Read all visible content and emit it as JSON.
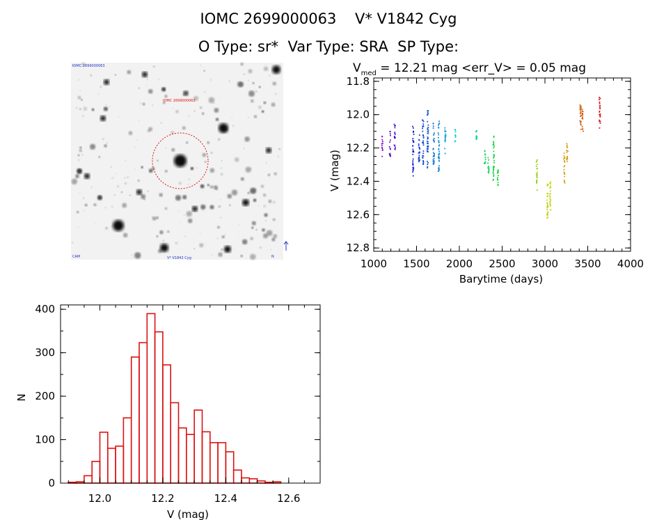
{
  "header": {
    "line1": "IOMC 2699000063    V* V1842 Cyg",
    "line2": "O Type: sr*  Var Type: SRA  SP Type:"
  },
  "colors": {
    "hist": "#dd1111",
    "circle": "#dd1111",
    "axis": "#000000"
  },
  "image_panel": {
    "label_top_left": "IOMC 2699000063",
    "label_red": "IOMC 2699000063",
    "label_bottom_left": "CAM",
    "label_bottom_center": "V* V1842 Cyg",
    "label_bottom_right": "N",
    "arrow_icon": "north-arrow-icon"
  },
  "chart_data": [
    {
      "type": "scatter",
      "title_prefix": "V",
      "title_sub": "med",
      "title_suffix": " = 12.21 mag <err_V> = 0.05 mag",
      "xlabel": "Barytime (days)",
      "ylabel": "V (mag)",
      "xlim": [
        1000,
        4000
      ],
      "ylim": [
        12.82,
        11.78
      ],
      "y_inverted": true,
      "xticks": [
        "1000",
        "1500",
        "2000",
        "2500",
        "3000",
        "3500",
        "4000"
      ],
      "yticks": [
        "11.8",
        "12.0",
        "12.2",
        "12.4",
        "12.6",
        "12.8"
      ],
      "color_by": "time",
      "segments": [
        {
          "x": 1100,
          "y": [
            12.13,
            12.27
          ]
        },
        {
          "x": 1190,
          "y": [
            12.1,
            12.25
          ]
        },
        {
          "x": 1245,
          "y": [
            12.05,
            12.21
          ]
        },
        {
          "x": 1460,
          "y": [
            12.07,
            12.37
          ]
        },
        {
          "x": 1530,
          "y": [
            12.12,
            12.3
          ]
        },
        {
          "x": 1575,
          "y": [
            12.03,
            12.3
          ]
        },
        {
          "x": 1630,
          "y": [
            11.95,
            12.34
          ]
        },
        {
          "x": 1700,
          "y": [
            12.05,
            12.3
          ]
        },
        {
          "x": 1760,
          "y": [
            12.03,
            12.35
          ]
        },
        {
          "x": 1835,
          "y": [
            12.07,
            12.24
          ]
        },
        {
          "x": 1950,
          "y": [
            12.08,
            12.17
          ]
        },
        {
          "x": 2200,
          "y": [
            12.08,
            12.16
          ]
        },
        {
          "x": 2300,
          "y": [
            12.2,
            12.3
          ]
        },
        {
          "x": 2340,
          "y": [
            12.25,
            12.35
          ]
        },
        {
          "x": 2400,
          "y": [
            12.12,
            12.4
          ]
        },
        {
          "x": 2450,
          "y": [
            12.32,
            12.44
          ]
        },
        {
          "x": 2905,
          "y": [
            12.27,
            12.46
          ]
        },
        {
          "x": 3030,
          "y": [
            12.41,
            12.65
          ]
        },
        {
          "x": 3060,
          "y": [
            12.38,
            12.58
          ]
        },
        {
          "x": 3225,
          "y": [
            12.22,
            12.41
          ]
        },
        {
          "x": 3260,
          "y": [
            12.17,
            12.3
          ]
        },
        {
          "x": 3415,
          "y": [
            11.93,
            12.13
          ]
        },
        {
          "x": 3440,
          "y": [
            11.96,
            12.1
          ]
        },
        {
          "x": 3640,
          "y": [
            11.89,
            12.08
          ]
        }
      ]
    },
    {
      "type": "bar",
      "histogram": true,
      "xlabel": "V (mag)",
      "ylabel": "N",
      "xlim": [
        11.875,
        12.7
      ],
      "ylim": [
        0,
        410
      ],
      "xticks": [
        "12.0",
        "12.2",
        "12.4",
        "12.6"
      ],
      "yticks": [
        "0",
        "100",
        "200",
        "300",
        "400"
      ],
      "bin_start": 11.9,
      "bin_width": 0.025,
      "values": [
        2,
        3,
        17,
        50,
        117,
        80,
        85,
        150,
        290,
        323,
        390,
        348,
        272,
        185,
        127,
        112,
        168,
        118,
        93,
        93,
        72,
        30,
        12,
        10,
        5,
        2,
        3
      ]
    }
  ]
}
